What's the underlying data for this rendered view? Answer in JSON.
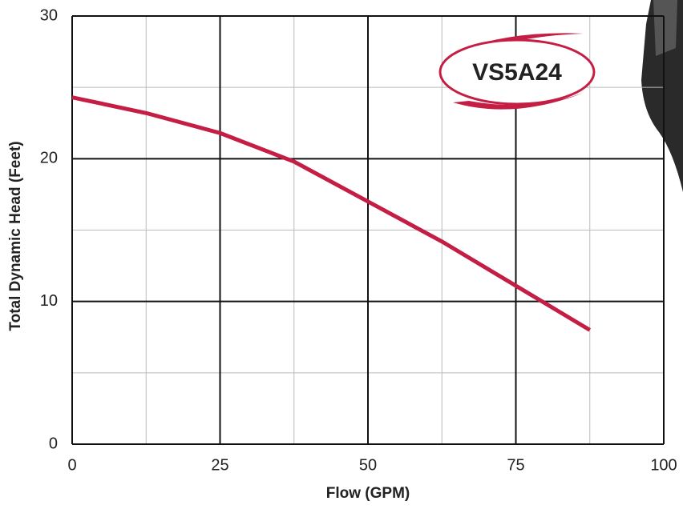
{
  "chart_data": {
    "type": "line",
    "x_label": "Flow (GPM)",
    "y_label": "Total Dynamic Head (Feet)",
    "annotation": "VS5A24",
    "x": [
      0,
      12.5,
      25,
      37.5,
      50,
      62.5,
      75,
      87.5
    ],
    "series": [
      {
        "name": "VS5A24",
        "color": "#c41e45",
        "values": [
          24.3,
          23.2,
          21.8,
          19.8,
          17,
          14.2,
          11.1,
          8
        ]
      }
    ],
    "xlim": [
      0,
      100
    ],
    "xticks": [
      0,
      25,
      50,
      75,
      100
    ],
    "ylim": [
      0,
      30
    ],
    "yticks": [
      0,
      10,
      20,
      30
    ],
    "grid": true,
    "minor_grid": true
  }
}
